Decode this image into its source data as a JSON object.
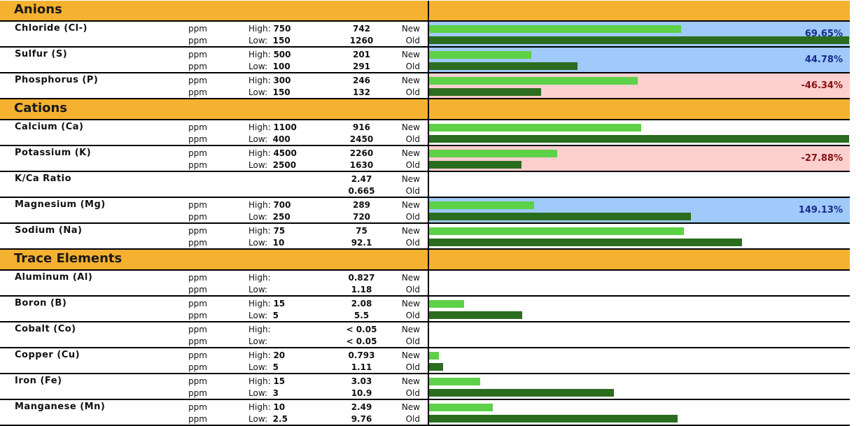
{
  "colors": {
    "section_header": "#f5b130",
    "increase_highlight": "#9fcaf9",
    "decrease_highlight": "#fdcfcf",
    "new_bar": "#5dd147",
    "old_bar": "#2b6d1f",
    "increase_text": "#1a2a8c",
    "decrease_text": "#8a1010"
  },
  "bar_scale_max": 2750,
  "tags": {
    "new": "New",
    "old": "Old"
  },
  "limit_labels": {
    "high": "High:",
    "low": "Low:"
  },
  "sections": [
    {
      "title": "Anions",
      "rows": [
        {
          "name": "Chloride (Cl-)",
          "unit": "ppm",
          "high": "750",
          "low": "150",
          "new": "742",
          "old": "1260",
          "new_num": 742,
          "old_num": 1260,
          "change": "69.65%",
          "trend": "up"
        },
        {
          "name": "Sulfur (S)",
          "unit": "ppm",
          "high": "500",
          "low": "100",
          "new": "201",
          "old": "291",
          "new_num": 201,
          "old_num": 291,
          "change": "44.78%",
          "trend": "up"
        },
        {
          "name": "Phosphorus (P)",
          "unit": "ppm",
          "high": "300",
          "low": "150",
          "new": "246",
          "old": "132",
          "new_num": 246,
          "old_num": 132,
          "change": "-46.34%",
          "trend": "down"
        }
      ]
    },
    {
      "title": "Cations",
      "rows": [
        {
          "name": "Calcium (Ca)",
          "unit": "ppm",
          "high": "1100",
          "low": "400",
          "new": "916",
          "old": "2450",
          "new_num": 916,
          "old_num": 2450,
          "change": "",
          "trend": ""
        },
        {
          "name": "Potassium (K)",
          "unit": "ppm",
          "high": "4500",
          "low": "2500",
          "new": "2260",
          "old": "1630",
          "new_num": 2260,
          "old_num": 1630,
          "change": "-27.88%",
          "trend": "down"
        },
        {
          "name": "K/Ca Ratio",
          "unit": "",
          "high": "",
          "low": "",
          "new": "2.47",
          "old": "0.665",
          "new_num": 0,
          "old_num": 0,
          "change": "",
          "trend": "",
          "no_limits": true
        },
        {
          "name": "Magnesium (Mg)",
          "unit": "ppm",
          "high": "700",
          "low": "250",
          "new": "289",
          "old": "720",
          "new_num": 289,
          "old_num": 720,
          "change": "149.13%",
          "trend": "up"
        },
        {
          "name": "Sodium (Na)",
          "unit": "ppm",
          "high": "75",
          "low": "10",
          "new": "75",
          "old": "92.1",
          "new_num": 75,
          "old_num": 92.1,
          "change": "",
          "trend": ""
        }
      ]
    },
    {
      "title": "Trace Elements",
      "rows": [
        {
          "name": "Aluminum (Al)",
          "unit": "ppm",
          "high": "",
          "low": "",
          "new": "0.827",
          "old": "1.18",
          "new_num": 0,
          "old_num": 0,
          "change": "",
          "trend": ""
        },
        {
          "name": "Boron (B)",
          "unit": "ppm",
          "high": "15",
          "low": "5",
          "new": "2.08",
          "old": "5.5",
          "new_num": 2.08,
          "old_num": 5.5,
          "change": "",
          "trend": ""
        },
        {
          "name": "Cobalt (Co)",
          "unit": "ppm",
          "high": "",
          "low": "",
          "new": "< 0.05",
          "old": "< 0.05",
          "new_num": 0,
          "old_num": 0,
          "change": "",
          "trend": ""
        },
        {
          "name": "Copper (Cu)",
          "unit": "ppm",
          "high": "20",
          "low": "5",
          "new": "0.793",
          "old": "1.11",
          "new_num": 0.793,
          "old_num": 1.11,
          "change": "",
          "trend": ""
        },
        {
          "name": "Iron (Fe)",
          "unit": "ppm",
          "high": "15",
          "low": "3",
          "new": "3.03",
          "old": "10.9",
          "new_num": 3.03,
          "old_num": 10.9,
          "change": "",
          "trend": ""
        },
        {
          "name": "Manganese (Mn)",
          "unit": "ppm",
          "high": "10",
          "low": "2.5",
          "new": "2.49",
          "old": "9.76",
          "new_num": 2.49,
          "old_num": 9.76,
          "change": "",
          "trend": ""
        }
      ]
    }
  ]
}
